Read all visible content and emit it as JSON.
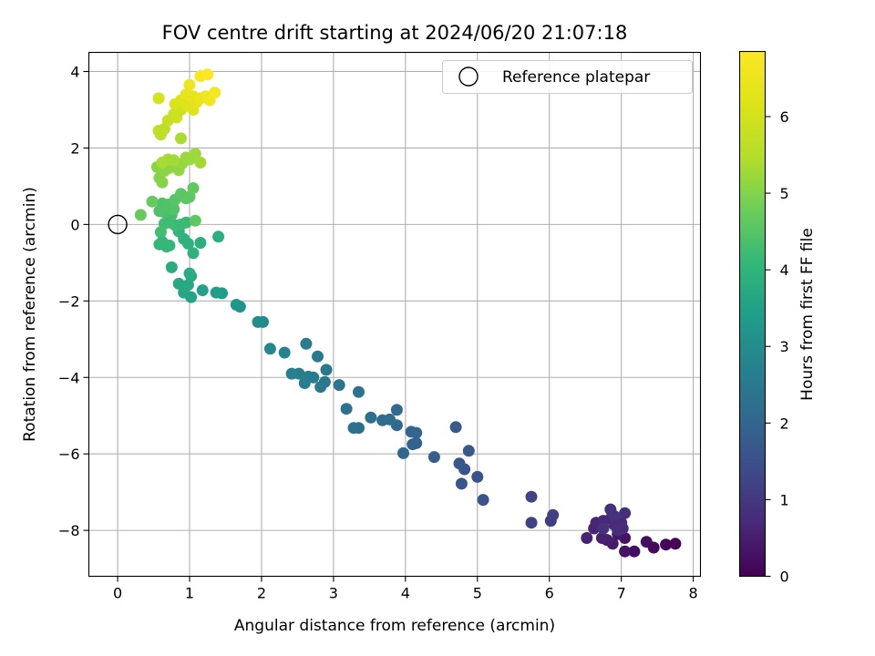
{
  "chart_data": {
    "type": "scatter",
    "title": "FOV centre drift starting at 2024/06/20 21:07:18",
    "xlabel": "Angular distance from reference (arcmin)",
    "ylabel": "Rotation from reference (arcmin)",
    "xlim": [
      -0.4,
      8.1
    ],
    "ylim": [
      -9.2,
      4.5
    ],
    "xticks": [
      0,
      1,
      2,
      3,
      4,
      5,
      6,
      7,
      8
    ],
    "yticks": [
      -8,
      -6,
      -4,
      -2,
      0,
      2,
      4
    ],
    "grid": true,
    "legend": {
      "placement": "upper right",
      "entries": [
        {
          "label": "Reference platepar",
          "marker": "open-circle",
          "x": 0,
          "y": 0
        }
      ]
    },
    "colorbar": {
      "label": "Hours from first FF file",
      "range": [
        0,
        6.85
      ],
      "ticks": [
        0,
        1,
        2,
        3,
        4,
        5,
        6
      ],
      "colormap": "viridis"
    },
    "series": [
      {
        "points": [
          [
            7.75,
            -8.35,
            0.05
          ],
          [
            7.62,
            -8.37,
            0.1
          ],
          [
            7.45,
            -8.45,
            0.15
          ],
          [
            7.35,
            -8.3,
            0.2
          ],
          [
            7.18,
            -8.55,
            0.25
          ],
          [
            7.05,
            -8.55,
            0.3
          ],
          [
            7.05,
            -8.2,
            0.35
          ],
          [
            6.95,
            -8.1,
            0.4
          ],
          [
            6.88,
            -8.35,
            0.45
          ],
          [
            6.8,
            -8.25,
            0.5
          ],
          [
            6.73,
            -8.2,
            0.55
          ],
          [
            6.52,
            -8.2,
            0.6
          ],
          [
            6.62,
            -7.95,
            0.62
          ],
          [
            6.65,
            -7.8,
            0.65
          ],
          [
            6.75,
            -7.75,
            0.68
          ],
          [
            6.85,
            -7.7,
            0.7
          ],
          [
            6.9,
            -7.85,
            0.72
          ],
          [
            7.0,
            -7.8,
            0.75
          ],
          [
            6.95,
            -8.0,
            0.78
          ],
          [
            7.02,
            -7.95,
            0.8
          ],
          [
            6.85,
            -7.45,
            0.82
          ],
          [
            7.05,
            -7.55,
            0.85
          ],
          [
            6.75,
            -7.95,
            0.88
          ],
          [
            6.9,
            -7.62,
            0.9
          ],
          [
            6.02,
            -7.75,
            1.1
          ],
          [
            6.05,
            -7.6,
            1.15
          ],
          [
            5.75,
            -7.8,
            1.2
          ],
          [
            5.75,
            -7.12,
            1.25
          ],
          [
            5.08,
            -7.2,
            1.55
          ],
          [
            5.0,
            -6.6,
            1.6
          ],
          [
            4.82,
            -6.4,
            1.62
          ],
          [
            4.78,
            -6.78,
            1.65
          ],
          [
            4.75,
            -6.25,
            1.68
          ],
          [
            4.88,
            -5.92,
            1.72
          ],
          [
            4.7,
            -5.3,
            1.75
          ],
          [
            4.4,
            -6.08,
            1.85
          ],
          [
            4.15,
            -5.72,
            1.9
          ],
          [
            4.1,
            -5.75,
            1.95
          ],
          [
            4.08,
            -5.42,
            2.0
          ],
          [
            4.15,
            -5.45,
            2.02
          ],
          [
            3.97,
            -5.98,
            2.05
          ],
          [
            3.88,
            -5.25,
            2.1
          ],
          [
            3.88,
            -4.85,
            2.12
          ],
          [
            3.78,
            -5.1,
            2.15
          ],
          [
            3.68,
            -5.12,
            2.18
          ],
          [
            3.52,
            -5.05,
            2.2
          ],
          [
            3.35,
            -5.32,
            2.25
          ],
          [
            3.28,
            -5.32,
            2.28
          ],
          [
            3.18,
            -4.82,
            2.3
          ],
          [
            3.35,
            -4.38,
            2.35
          ],
          [
            3.08,
            -4.2,
            2.4
          ],
          [
            2.9,
            -3.8,
            2.45
          ],
          [
            2.88,
            -4.12,
            2.48
          ],
          [
            2.82,
            -4.25,
            2.5
          ],
          [
            2.78,
            -3.45,
            2.52
          ],
          [
            2.72,
            -4.0,
            2.55
          ],
          [
            2.65,
            -3.98,
            2.58
          ],
          [
            2.62,
            -3.12,
            2.6
          ],
          [
            2.6,
            -4.15,
            2.62
          ],
          [
            2.52,
            -3.9,
            2.65
          ],
          [
            2.42,
            -3.9,
            2.7
          ],
          [
            2.32,
            -3.35,
            2.75
          ],
          [
            2.12,
            -3.25,
            2.85
          ],
          [
            2.02,
            -2.55,
            2.95
          ],
          [
            1.95,
            -2.55,
            3.0
          ],
          [
            1.7,
            -2.15,
            3.2
          ],
          [
            1.65,
            -2.1,
            3.25
          ],
          [
            1.45,
            -1.8,
            3.4
          ],
          [
            1.37,
            -1.78,
            3.45
          ],
          [
            1.18,
            -1.72,
            3.55
          ],
          [
            1.02,
            -1.9,
            3.6
          ],
          [
            0.92,
            -1.78,
            3.65
          ],
          [
            0.98,
            -1.58,
            3.7
          ],
          [
            0.85,
            -1.55,
            3.72
          ],
          [
            1.02,
            -1.35,
            3.75
          ],
          [
            1.0,
            -1.28,
            3.78
          ],
          [
            0.75,
            -1.12,
            3.8
          ],
          [
            1.4,
            -0.32,
            3.85
          ],
          [
            1.15,
            -0.48,
            3.9
          ],
          [
            1.05,
            -0.75,
            3.92
          ],
          [
            0.98,
            -0.5,
            3.95
          ],
          [
            0.92,
            -0.38,
            3.98
          ],
          [
            0.85,
            -0.18,
            4.0
          ],
          [
            0.72,
            -0.55,
            4.05
          ],
          [
            0.68,
            -0.58,
            4.08
          ],
          [
            0.62,
            -0.45,
            4.1
          ],
          [
            0.58,
            -0.52,
            4.12
          ],
          [
            0.95,
            0.05,
            4.15
          ],
          [
            0.88,
            0.0,
            4.18
          ],
          [
            0.8,
            -0.02,
            4.2
          ],
          [
            0.72,
            0.05,
            4.22
          ],
          [
            0.65,
            0.02,
            4.25
          ],
          [
            0.6,
            -0.2,
            4.28
          ],
          [
            0.75,
            0.25,
            4.3
          ],
          [
            0.72,
            0.38,
            4.35
          ],
          [
            0.65,
            0.32,
            4.38
          ],
          [
            0.58,
            0.35,
            4.4
          ],
          [
            0.62,
            0.55,
            4.42
          ],
          [
            0.7,
            0.52,
            4.45
          ],
          [
            0.78,
            0.4,
            4.48
          ],
          [
            0.8,
            0.65,
            4.52
          ],
          [
            0.88,
            0.8,
            4.55
          ],
          [
            0.95,
            0.68,
            4.58
          ],
          [
            1.0,
            0.72,
            4.6
          ],
          [
            1.08,
            0.1,
            4.62
          ],
          [
            1.05,
            0.95,
            4.65
          ],
          [
            0.48,
            0.6,
            4.68
          ],
          [
            0.32,
            0.25,
            4.7
          ],
          [
            0.58,
            1.22,
            5.0
          ],
          [
            0.62,
            1.1,
            5.02
          ],
          [
            0.55,
            1.5,
            5.05
          ],
          [
            0.65,
            1.4,
            5.08
          ],
          [
            0.72,
            1.48,
            5.1
          ],
          [
            0.8,
            1.52,
            5.12
          ],
          [
            0.85,
            1.42,
            5.15
          ],
          [
            0.9,
            1.6,
            5.18
          ],
          [
            0.95,
            1.75,
            5.2
          ],
          [
            1.0,
            1.7,
            5.22
          ],
          [
            1.08,
            1.85,
            5.25
          ],
          [
            1.15,
            1.62,
            5.28
          ],
          [
            0.78,
            1.68,
            5.3
          ],
          [
            0.7,
            1.7,
            5.32
          ],
          [
            0.62,
            1.62,
            5.35
          ],
          [
            0.88,
            2.25,
            5.4
          ],
          [
            0.6,
            2.35,
            5.55
          ],
          [
            0.57,
            2.45,
            5.6
          ],
          [
            0.65,
            2.5,
            5.65
          ],
          [
            0.7,
            2.72,
            5.75
          ],
          [
            0.78,
            2.88,
            5.8
          ],
          [
            0.82,
            2.8,
            5.85
          ],
          [
            0.88,
            3.0,
            5.9
          ],
          [
            0.95,
            3.1,
            6.0
          ],
          [
            0.57,
            3.3,
            6.05
          ],
          [
            0.8,
            3.15,
            6.1
          ],
          [
            0.88,
            3.25,
            6.15
          ],
          [
            0.98,
            3.1,
            6.2
          ],
          [
            1.05,
            3.0,
            6.25
          ],
          [
            1.1,
            3.2,
            6.3
          ],
          [
            0.95,
            3.4,
            6.35
          ],
          [
            1.05,
            3.35,
            6.4
          ],
          [
            1.15,
            3.3,
            6.45
          ],
          [
            1.22,
            3.35,
            6.5
          ],
          [
            1.0,
            3.65,
            6.55
          ],
          [
            1.28,
            3.25,
            6.6
          ],
          [
            1.35,
            3.45,
            6.65
          ],
          [
            1.15,
            3.88,
            6.75
          ],
          [
            1.25,
            3.92,
            6.8
          ]
        ]
      }
    ]
  }
}
